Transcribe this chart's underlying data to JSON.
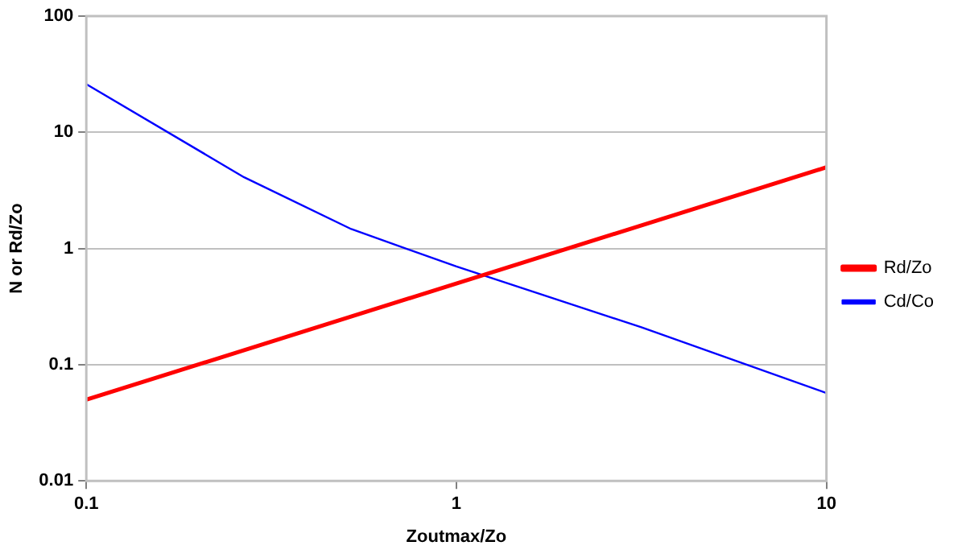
{
  "chart_data": {
    "type": "line",
    "xlabel": "Zoutmax/Zo",
    "ylabel": "N or Rd/Zo",
    "log": "xy",
    "xlim": [
      0.1,
      10
    ],
    "ylim": [
      0.01,
      100
    ],
    "xticks": [
      0.1,
      1,
      10
    ],
    "yticks": [
      0.01,
      0.1,
      1,
      10,
      100
    ],
    "grid": "y",
    "legend": "right",
    "marker": "none",
    "line_style": "solid",
    "series": [
      {
        "name": "Rd/Zo",
        "color": "#ff0000",
        "x": [
          0.1,
          10
        ],
        "values": [
          0.05,
          5
        ]
      },
      {
        "name": "Cd/Co",
        "color": "#0000ff",
        "x": [
          0.1,
          0.267,
          0.52,
          1,
          3.16,
          10
        ],
        "values": [
          26,
          4.1,
          1.47,
          0.7,
          0.21,
          0.057
        ]
      }
    ]
  }
}
